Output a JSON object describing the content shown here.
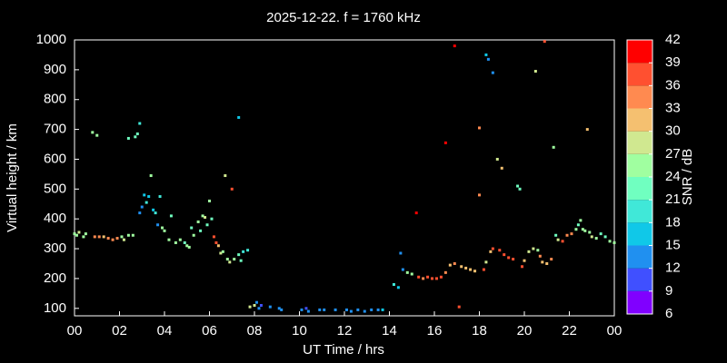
{
  "chart_data": {
    "type": "scatter",
    "title": "2025-12-22. f = 1760 kHz",
    "x_label": "UT Time / hrs",
    "y_label": "Virtual height / km",
    "xlim": [
      0,
      24
    ],
    "xticks": [
      {
        "value": 0,
        "label": "00"
      },
      {
        "value": 2,
        "label": "02"
      },
      {
        "value": 4,
        "label": "04"
      },
      {
        "value": 6,
        "label": "06"
      },
      {
        "value": 8,
        "label": "08"
      },
      10,
      12,
      14,
      16,
      18,
      20,
      22,
      {
        "value": 24,
        "label": "00"
      }
    ],
    "ylim": [
      75,
      1000
    ],
    "yticks": [
      100,
      200,
      300,
      400,
      500,
      600,
      700,
      800,
      900,
      1000
    ],
    "colorbar": {
      "label": "SNR / dB",
      "lim": [
        6,
        42
      ],
      "ticks": [
        6,
        9,
        12,
        15,
        18,
        21,
        24,
        27,
        30,
        33,
        36,
        39,
        42
      ],
      "colors": [
        "#8000ff",
        "#4050ff",
        "#2090f0",
        "#10c8e8",
        "#40e8d8",
        "#70ffc0",
        "#a0ffa0",
        "#d0e890",
        "#f5c070",
        "#ff8a50",
        "#ff5030",
        "#ff0000"
      ]
    },
    "x": [
      0.0,
      0.1,
      0.2,
      0.4,
      0.5,
      0.8,
      1.0,
      0.9,
      1.1,
      1.3,
      1.5,
      1.7,
      1.9,
      2.1,
      2.2,
      2.4,
      2.6,
      2.4,
      2.7,
      2.8,
      2.9,
      2.9,
      3.0,
      3.1,
      3.2,
      3.3,
      3.4,
      3.5,
      3.6,
      3.7,
      3.8,
      3.9,
      4.0,
      4.2,
      4.3,
      4.5,
      4.7,
      4.9,
      5.0,
      5.1,
      5.2,
      5.3,
      5.5,
      5.6,
      5.7,
      5.8,
      5.9,
      6.0,
      6.1,
      6.2,
      6.3,
      6.4,
      6.5,
      6.6,
      6.7,
      6.8,
      6.9,
      7.0,
      7.1,
      7.3,
      7.4,
      7.5,
      7.7,
      7.3,
      7.8,
      8.0,
      8.1,
      8.2,
      8.3,
      8.7,
      9.1,
      9.2,
      10.1,
      10.3,
      10.4,
      10.9,
      11.1,
      11.6,
      12.1,
      12.3,
      12.6,
      12.9,
      13.2,
      13.5,
      13.7,
      14.2,
      14.4,
      14.5,
      14.6,
      14.8,
      15.0,
      15.2,
      15.3,
      15.5,
      15.7,
      15.9,
      16.1,
      16.3,
      16.5,
      16.5,
      16.7,
      16.9,
      16.9,
      17.1,
      17.2,
      17.4,
      17.6,
      17.8,
      18.0,
      18.0,
      18.2,
      18.3,
      18.3,
      18.4,
      18.6,
      18.5,
      18.6,
      18.8,
      18.9,
      19.0,
      19.1,
      19.3,
      19.5,
      19.7,
      19.8,
      19.9,
      20.0,
      20.2,
      20.4,
      20.6,
      20.5,
      20.7,
      20.8,
      21.0,
      21.2,
      20.9,
      21.4,
      21.5,
      21.7,
      21.9,
      22.1,
      22.3,
      22.4,
      22.5,
      22.6,
      22.7,
      22.8,
      22.9,
      23.0,
      23.2,
      23.4,
      23.6,
      23.8,
      24.0,
      21.3
    ],
    "y": [
      350,
      345,
      355,
      340,
      350,
      690,
      680,
      340,
      340,
      340,
      335,
      330,
      335,
      340,
      330,
      345,
      345,
      670,
      675,
      685,
      720,
      420,
      440,
      480,
      455,
      475,
      545,
      430,
      420,
      380,
      475,
      370,
      360,
      330,
      410,
      320,
      330,
      320,
      310,
      305,
      370,
      345,
      390,
      360,
      410,
      405,
      380,
      460,
      400,
      340,
      320,
      310,
      285,
      290,
      545,
      265,
      255,
      500,
      265,
      280,
      260,
      290,
      295,
      740,
      105,
      110,
      120,
      100,
      110,
      105,
      100,
      95,
      95,
      100,
      90,
      95,
      95,
      95,
      95,
      90,
      95,
      90,
      95,
      95,
      95,
      180,
      170,
      285,
      230,
      220,
      215,
      420,
      205,
      200,
      205,
      200,
      200,
      205,
      655,
      220,
      245,
      980,
      250,
      105,
      240,
      235,
      230,
      225,
      480,
      705,
      230,
      255,
      950,
      935,
      890,
      290,
      300,
      600,
      295,
      570,
      280,
      270,
      265,
      510,
      500,
      240,
      260,
      290,
      300,
      295,
      895,
      275,
      255,
      250,
      265,
      995,
      345,
      330,
      325,
      345,
      350,
      365,
      380,
      395,
      365,
      360,
      700,
      355,
      340,
      335,
      350,
      340,
      325,
      320,
      640
    ],
    "snr": [
      24,
      24,
      27,
      24,
      24,
      24,
      24,
      33,
      33,
      30,
      33,
      33,
      33,
      24,
      27,
      24,
      24,
      21,
      21,
      21,
      18,
      12,
      12,
      15,
      18,
      15,
      24,
      15,
      18,
      12,
      18,
      24,
      24,
      24,
      21,
      24,
      24,
      21,
      24,
      24,
      21,
      24,
      24,
      21,
      24,
      27,
      21,
      24,
      21,
      36,
      36,
      30,
      27,
      24,
      27,
      24,
      27,
      36,
      24,
      21,
      21,
      18,
      18,
      15,
      27,
      27,
      12,
      12,
      9,
      12,
      12,
      12,
      12,
      9,
      12,
      12,
      12,
      12,
      12,
      12,
      12,
      12,
      12,
      12,
      15,
      18,
      15,
      12,
      12,
      24,
      24,
      39,
      36,
      33,
      36,
      36,
      36,
      36,
      39,
      33,
      30,
      39,
      33,
      36,
      30,
      30,
      30,
      30,
      33,
      33,
      36,
      27,
      15,
      12,
      12,
      30,
      36,
      27,
      36,
      30,
      36,
      36,
      36,
      21,
      21,
      36,
      30,
      27,
      27,
      24,
      27,
      33,
      30,
      30,
      33,
      36,
      21,
      27,
      36,
      33,
      33,
      24,
      21,
      24,
      24,
      24,
      30,
      24,
      27,
      24,
      21,
      21,
      24,
      24,
      24
    ]
  }
}
